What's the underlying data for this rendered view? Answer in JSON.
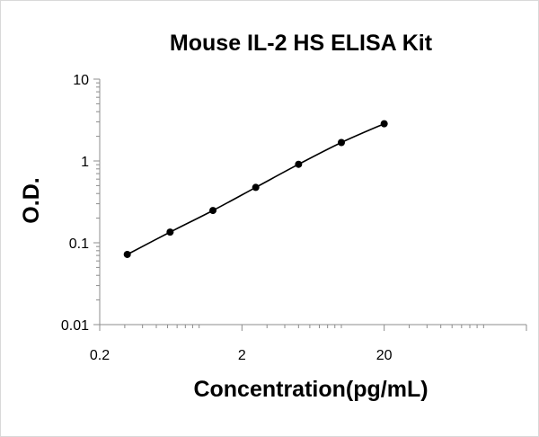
{
  "chart_data": {
    "type": "scatter",
    "title": "Mouse IL-2 HS ELISA Kit",
    "xlabel": "Concentration(pg/mL)",
    "ylabel": "O.D.",
    "x_scale": "log",
    "y_scale": "log",
    "xlim": [
      0.2,
      200
    ],
    "ylim": [
      0.01,
      10
    ],
    "x_ticks": [
      0.2,
      2,
      20
    ],
    "x_tick_labels": [
      "0.2",
      "2",
      "20"
    ],
    "y_ticks": [
      0.01,
      0.1,
      1,
      10
    ],
    "y_tick_labels": [
      "0.01",
      "0.1",
      "1",
      "10"
    ],
    "grid": false,
    "legend": "none",
    "series": [
      {
        "x": [
          0.3125,
          0.625,
          1.25,
          2.5,
          5,
          10,
          20
        ],
        "y": [
          0.072,
          0.135,
          0.248,
          0.475,
          0.91,
          1.68,
          2.85
        ],
        "marker": "circle",
        "line": "smooth",
        "color": "#000000"
      }
    ]
  }
}
